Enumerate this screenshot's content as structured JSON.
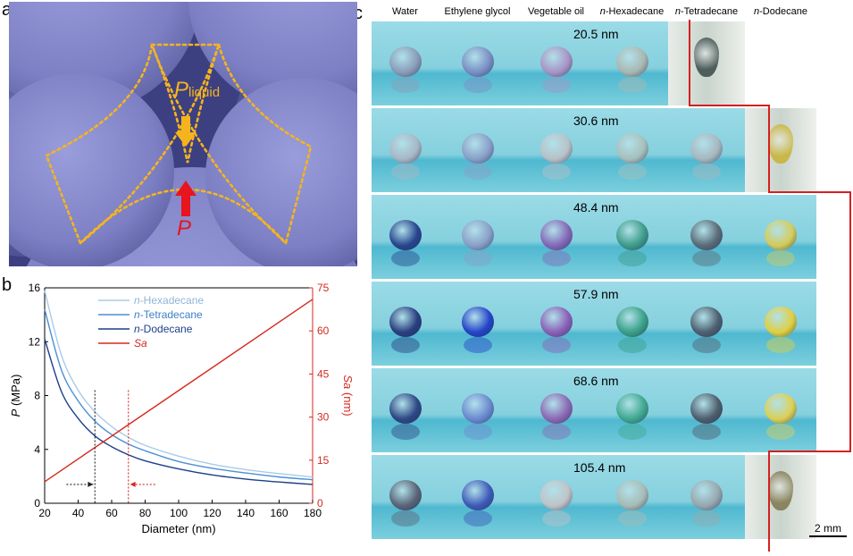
{
  "panel_labels": {
    "a": "a",
    "b": "b",
    "c": "c"
  },
  "panel_a": {
    "p_liquid_label": "P",
    "p_liquid_sub": "liquid",
    "p_label": "P",
    "colors": {
      "sphere": "#7c7fc2",
      "dash": "#f5b41e",
      "arrow_liquid": "#f5b41e",
      "arrow_p": "#e8141e",
      "p_text": "#e8141e"
    }
  },
  "chart_data": {
    "type": "line",
    "title": "",
    "xlabel": "Diameter (nm)",
    "ylabel": "P (MPa)",
    "y2label": "Sa (nm)",
    "xlim": [
      20,
      180
    ],
    "ylim": [
      0,
      16
    ],
    "y2lim": [
      0,
      75
    ],
    "xticks": [
      20,
      40,
      60,
      80,
      100,
      120,
      140,
      160,
      180
    ],
    "yticks": [
      0,
      4,
      8,
      12,
      16
    ],
    "y2ticks": [
      0,
      15,
      30,
      45,
      60,
      75
    ],
    "legend": "top-center",
    "series": [
      {
        "name": "n-Hexadecane",
        "prefix": "n",
        "rest": "-Hexadecane",
        "color": "#a9cbe8",
        "axis": "left",
        "x": [
          20,
          30,
          40,
          50,
          60,
          70,
          80,
          100,
          120,
          140,
          160,
          180
        ],
        "y": [
          15.8,
          11.0,
          8.4,
          6.8,
          5.7,
          4.9,
          4.3,
          3.5,
          2.9,
          2.5,
          2.2,
          1.95
        ]
      },
      {
        "name": "n-Tetradecane",
        "prefix": "n",
        "rest": "-Tetradecane",
        "color": "#4b8fd4",
        "axis": "left",
        "x": [
          20,
          30,
          40,
          50,
          60,
          70,
          80,
          100,
          120,
          140,
          160,
          180
        ],
        "y": [
          14.4,
          9.9,
          7.6,
          6.1,
          5.1,
          4.4,
          3.9,
          3.1,
          2.6,
          2.25,
          1.95,
          1.75
        ]
      },
      {
        "name": "n-Dodecane",
        "prefix": "n",
        "rest": "-Dodecane",
        "color": "#1c3f8a",
        "axis": "left",
        "x": [
          20,
          30,
          40,
          50,
          60,
          70,
          80,
          100,
          120,
          140,
          160,
          180
        ],
        "y": [
          12.2,
          8.3,
          6.3,
          5.0,
          4.2,
          3.6,
          3.15,
          2.55,
          2.1,
          1.8,
          1.58,
          1.4
        ]
      },
      {
        "name": "Sa",
        "prefix": "",
        "rest": "Sa",
        "color": "#d42a20",
        "axis": "right",
        "x": [
          20,
          180
        ],
        "y": [
          7.5,
          71
        ]
      }
    ],
    "annotations": [
      {
        "type": "vline",
        "x": 50,
        "color": "#222222",
        "style": "dotted"
      },
      {
        "type": "vline",
        "x": 70,
        "color": "#d42a20",
        "style": "dotted"
      },
      {
        "type": "arrow",
        "from_x": 33,
        "to_x": 49,
        "y": 1.4,
        "color": "#222222",
        "direction": "right"
      },
      {
        "type": "arrow",
        "from_x": 86,
        "to_x": 71,
        "y": 1.4,
        "color": "#d42a20",
        "direction": "left"
      }
    ]
  },
  "panel_c": {
    "columns": [
      {
        "prefix": "",
        "rest": "Water"
      },
      {
        "prefix": "",
        "rest": "Ethylene glycol"
      },
      {
        "prefix": "",
        "rest": "Vegetable oil"
      },
      {
        "prefix": "n",
        "rest": "-Hexadecane"
      },
      {
        "prefix": "n",
        "rest": "-Tetradecane"
      },
      {
        "prefix": "n",
        "rest": "-Dodecane"
      }
    ],
    "rows": [
      {
        "size": "20.5 nm",
        "wetted_from_column": 4,
        "droplets": [
          "#8a9db8",
          "#7a8fc4",
          "#a895c6",
          "#aab8b2",
          "#4e5e5c",
          null
        ]
      },
      {
        "size": "30.6 nm",
        "wetted_from_column": 5,
        "droplets": [
          "#a8b8c6",
          "#8aa0c8",
          "#b8c2c8",
          "#a8c0bc",
          "#a8b8c0",
          "#c8b84a"
        ]
      },
      {
        "size": "48.4 nm",
        "wetted_from_column": 6,
        "droplets": [
          "#28468e",
          "#8aa0c8",
          "#8468b8",
          "#3e9c8a",
          "#5a6c78",
          "#d4cc5a"
        ]
      },
      {
        "size": "57.9 nm",
        "wetted_from_column": 6,
        "droplets": [
          "#2a3e80",
          "#2444c8",
          "#8a60b8",
          "#3aa088",
          "#4e6070",
          "#e0d040"
        ]
      },
      {
        "size": "68.6 nm",
        "wetted_from_column": 6,
        "droplets": [
          "#2e4884",
          "#6c8ad0",
          "#8c68b4",
          "#40a890",
          "#4e5e6c",
          "#dcd056"
        ]
      },
      {
        "size": "105.4 nm",
        "wetted_from_column": 5,
        "droplets": [
          "#5a6478",
          "#3e5ab8",
          "#c0c4c8",
          "#a8bcb6",
          "#98a8b0",
          "#8a8460"
        ]
      }
    ],
    "scale_bar": "2 mm",
    "colors": {
      "background": "#7ed3e0",
      "boundary": "#d42020"
    }
  }
}
